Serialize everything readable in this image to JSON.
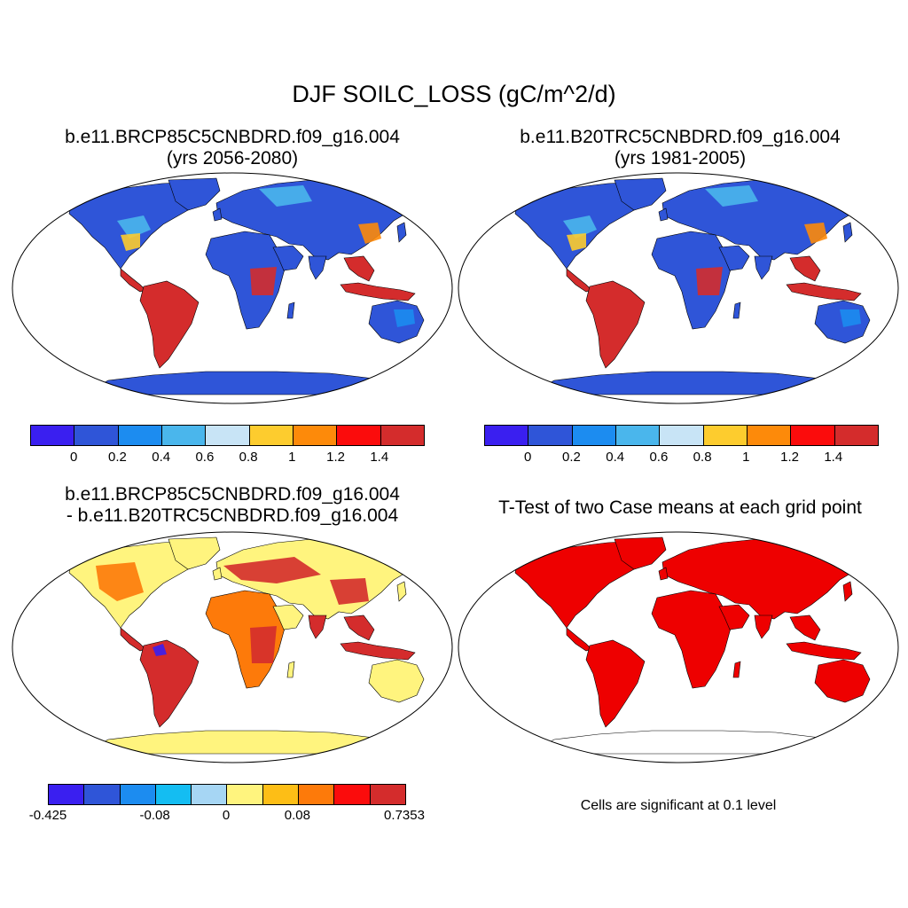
{
  "main_title": "DJF SOILC_LOSS (gC/m^2/d)",
  "panels": {
    "top_left": {
      "title_line1": "b.e11.BRCP85C5CNBDRD.f09_g16.004",
      "title_line2": "(yrs 2056-2080)"
    },
    "top_right": {
      "title_line1": "b.e11.B20TRC5CNBDRD.f09_g16.004",
      "title_line2": "(yrs 1981-2005)"
    },
    "bottom_left": {
      "title_line1": "b.e11.BRCP85C5CNBDRD.f09_g16.004",
      "title_line2": "- b.e11.B20TRC5CNBDRD.f09_g16.004"
    },
    "bottom_right": {
      "title_line1": "T-Test of two Case means at each grid point",
      "note": "Cells are significant at 0.1 level"
    }
  },
  "colorbar_absolute": {
    "colors": [
      "#3a1ff0",
      "#2f55d8",
      "#1c8cf0",
      "#4ab6ec",
      "#c8e4f6",
      "#fdcc2e",
      "#fd8a0a",
      "#fb0c0c",
      "#d42c2c"
    ],
    "labels": [
      "0",
      "0.2",
      "0.4",
      "0.6",
      "0.8",
      "1",
      "1.2",
      "1.4"
    ]
  },
  "colorbar_difference": {
    "colors": [
      "#3a1ff0",
      "#2f55d8",
      "#1c8cf0",
      "#14bdf2",
      "#a6d6f4",
      "#fff47e",
      "#fdbe16",
      "#fd7a0a",
      "#fb0c0c",
      "#d42c2c"
    ],
    "labels": [
      "-0.425",
      "-0.08",
      "0",
      "0.08",
      "0.7353"
    ],
    "label_positions": [
      0,
      3,
      5,
      7,
      10
    ]
  },
  "significance_color": "#ee0000",
  "ocean_color": "#ffffff",
  "land_colors": {
    "top_base": "#2f55d8",
    "top_tropical": "#d42c2c",
    "diff_base": "#fff47e",
    "diff_high": "#d42c2c"
  }
}
